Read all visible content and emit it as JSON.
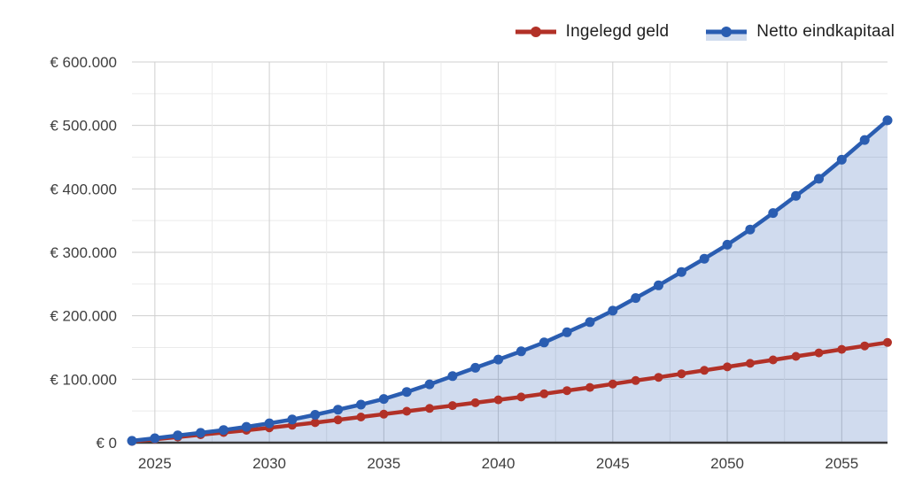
{
  "chart_data": {
    "type": "line",
    "title": "",
    "x_years": [
      2024,
      2025,
      2026,
      2027,
      2028,
      2029,
      2030,
      2031,
      2032,
      2033,
      2034,
      2035,
      2036,
      2037,
      2038,
      2039,
      2040,
      2041,
      2042,
      2043,
      2044,
      2045,
      2046,
      2047,
      2048,
      2049,
      2050,
      2051,
      2052,
      2053,
      2054,
      2055,
      2056,
      2057
    ],
    "series": [
      {
        "name": "Ingelegd geld",
        "color": "#b23127",
        "marker": "circle",
        "area_fill": false,
        "values": [
          2000,
          5500,
          9000,
          12500,
          16000,
          19500,
          23500,
          27500,
          31500,
          36000,
          40500,
          45000,
          49500,
          54000,
          58500,
          63000,
          67500,
          72000,
          77000,
          82000,
          87000,
          92500,
          98000,
          103000,
          108500,
          114000,
          119500,
          125000,
          130500,
          136000,
          141500,
          147000,
          152500,
          158000
        ]
      },
      {
        "name": "Netto eindkapitaal",
        "color": "#2a5db1",
        "marker": "circle",
        "area_fill": true,
        "area_color": "rgba(42,93,177,0.22)",
        "values": [
          3000,
          7000,
          11500,
          15500,
          20000,
          25000,
          30500,
          36500,
          44000,
          52000,
          60000,
          69000,
          80000,
          92000,
          105000,
          118000,
          131000,
          144000,
          158000,
          174000,
          190000,
          208000,
          228000,
          248000,
          269000,
          290000,
          312000,
          336000,
          362000,
          389000,
          416000,
          446000,
          477000,
          508000
        ]
      }
    ],
    "xlim": [
      2024,
      2057
    ],
    "ylim": [
      0,
      600000
    ],
    "xticks": [
      {
        "value": 2025,
        "label": "2025"
      },
      {
        "value": 2030,
        "label": "2030"
      },
      {
        "value": 2035,
        "label": "2035"
      },
      {
        "value": 2040,
        "label": "2040"
      },
      {
        "value": 2045,
        "label": "2045"
      },
      {
        "value": 2050,
        "label": "2050"
      },
      {
        "value": 2055,
        "label": "2055"
      }
    ],
    "yticks": [
      {
        "value": 0,
        "label": "€ 0"
      },
      {
        "value": 100000,
        "label": "€ 100.000"
      },
      {
        "value": 200000,
        "label": "€ 200.000"
      },
      {
        "value": 300000,
        "label": "€ 300.000"
      },
      {
        "value": 400000,
        "label": "€ 400.000"
      },
      {
        "value": 500000,
        "label": "€ 500.000"
      },
      {
        "value": 600000,
        "label": "€ 600.000"
      }
    ],
    "minor_y_step": 50000,
    "minor_x_step": 2.5,
    "grid": true,
    "legend_position": "top-right",
    "colors": {
      "major_grid": "#cfcfcf",
      "minor_grid": "#ebebeb",
      "axis_baseline": "#3a3a3a",
      "tick_text": "#3f3f3f"
    }
  }
}
